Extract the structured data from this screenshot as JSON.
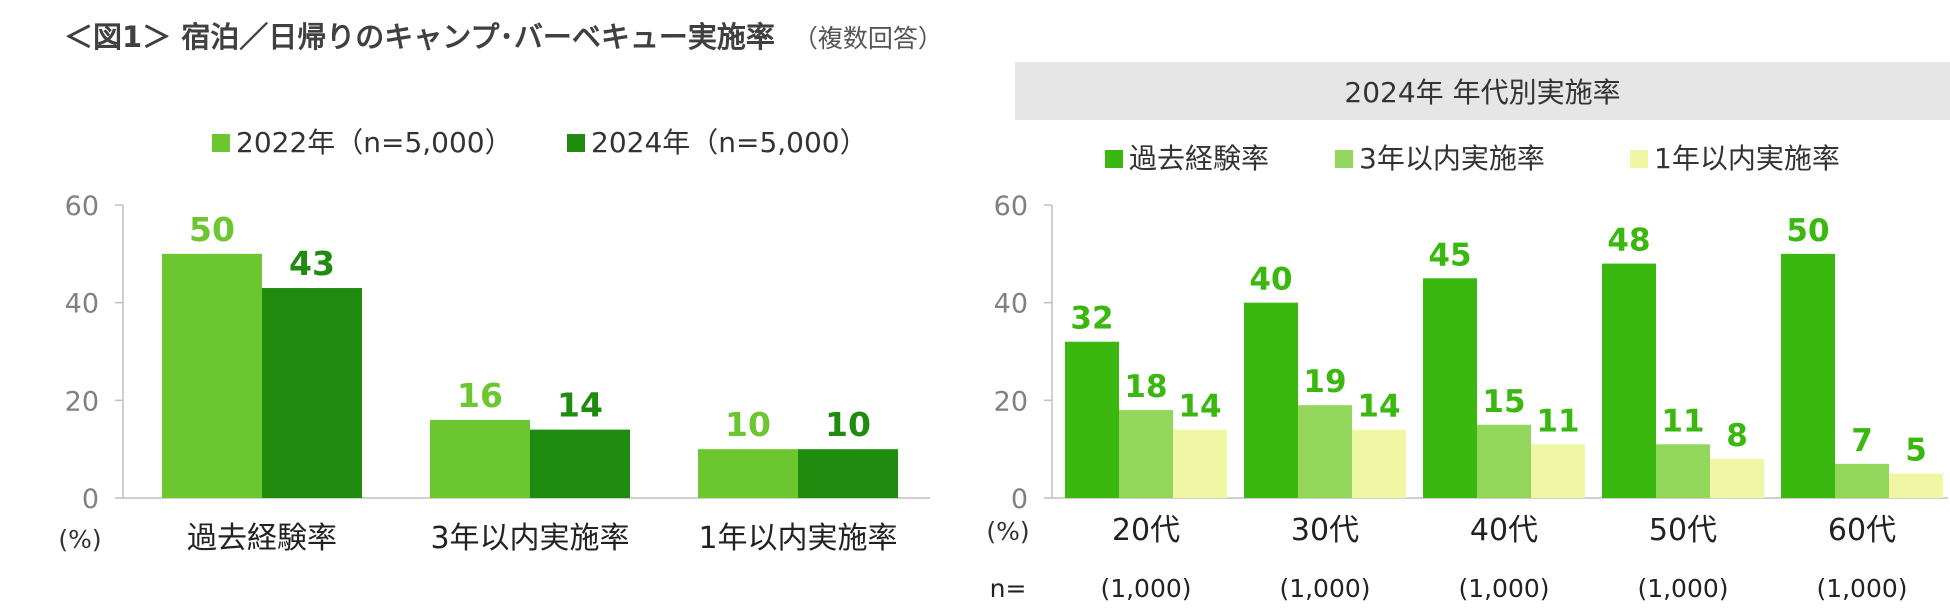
{
  "title": "＜図1＞ 宿泊／日帰りのキャンプ･バーベキュー実施率",
  "title_note": "（複数回答）",
  "right_header": "2024年 年代別実施率",
  "colors": {
    "c2022": "#6cc62f",
    "c2024": "#1f8c0f",
    "past": "#3ab80f",
    "within3": "#92d65c",
    "within1": "#f0f7a4",
    "axis": "#bfbfbf",
    "ytick": "#808080"
  },
  "chart_data": [
    {
      "type": "bar",
      "categories": [
        "過去経験率",
        "3年以内実施率",
        "1年以内実施率"
      ],
      "series": [
        {
          "name": "2022年（n=5,000）",
          "values": [
            50,
            16,
            10
          ]
        },
        {
          "name": "2024年（n=5,000）",
          "values": [
            43,
            14,
            10
          ]
        }
      ],
      "ylim": [
        0,
        60
      ],
      "yticks": [
        0,
        20,
        40,
        60
      ],
      "unit_label": "(%)",
      "legend": "top"
    },
    {
      "type": "bar",
      "categories": [
        "20代",
        "30代",
        "40代",
        "50代",
        "60代"
      ],
      "n_label": "n=",
      "n_values": [
        "(1,000)",
        "(1,000)",
        "(1,000)",
        "(1,000)",
        "(1,000)"
      ],
      "series": [
        {
          "name": "過去経験率",
          "values": [
            32,
            40,
            45,
            48,
            50
          ]
        },
        {
          "name": "3年以内実施率",
          "values": [
            18,
            19,
            15,
            11,
            7
          ]
        },
        {
          "name": "1年以内実施率",
          "values": [
            14,
            14,
            11,
            8,
            5
          ]
        }
      ],
      "ylim": [
        0,
        60
      ],
      "yticks": [
        0,
        20,
        40,
        60
      ],
      "unit_label": "(%)",
      "legend": "top"
    }
  ]
}
